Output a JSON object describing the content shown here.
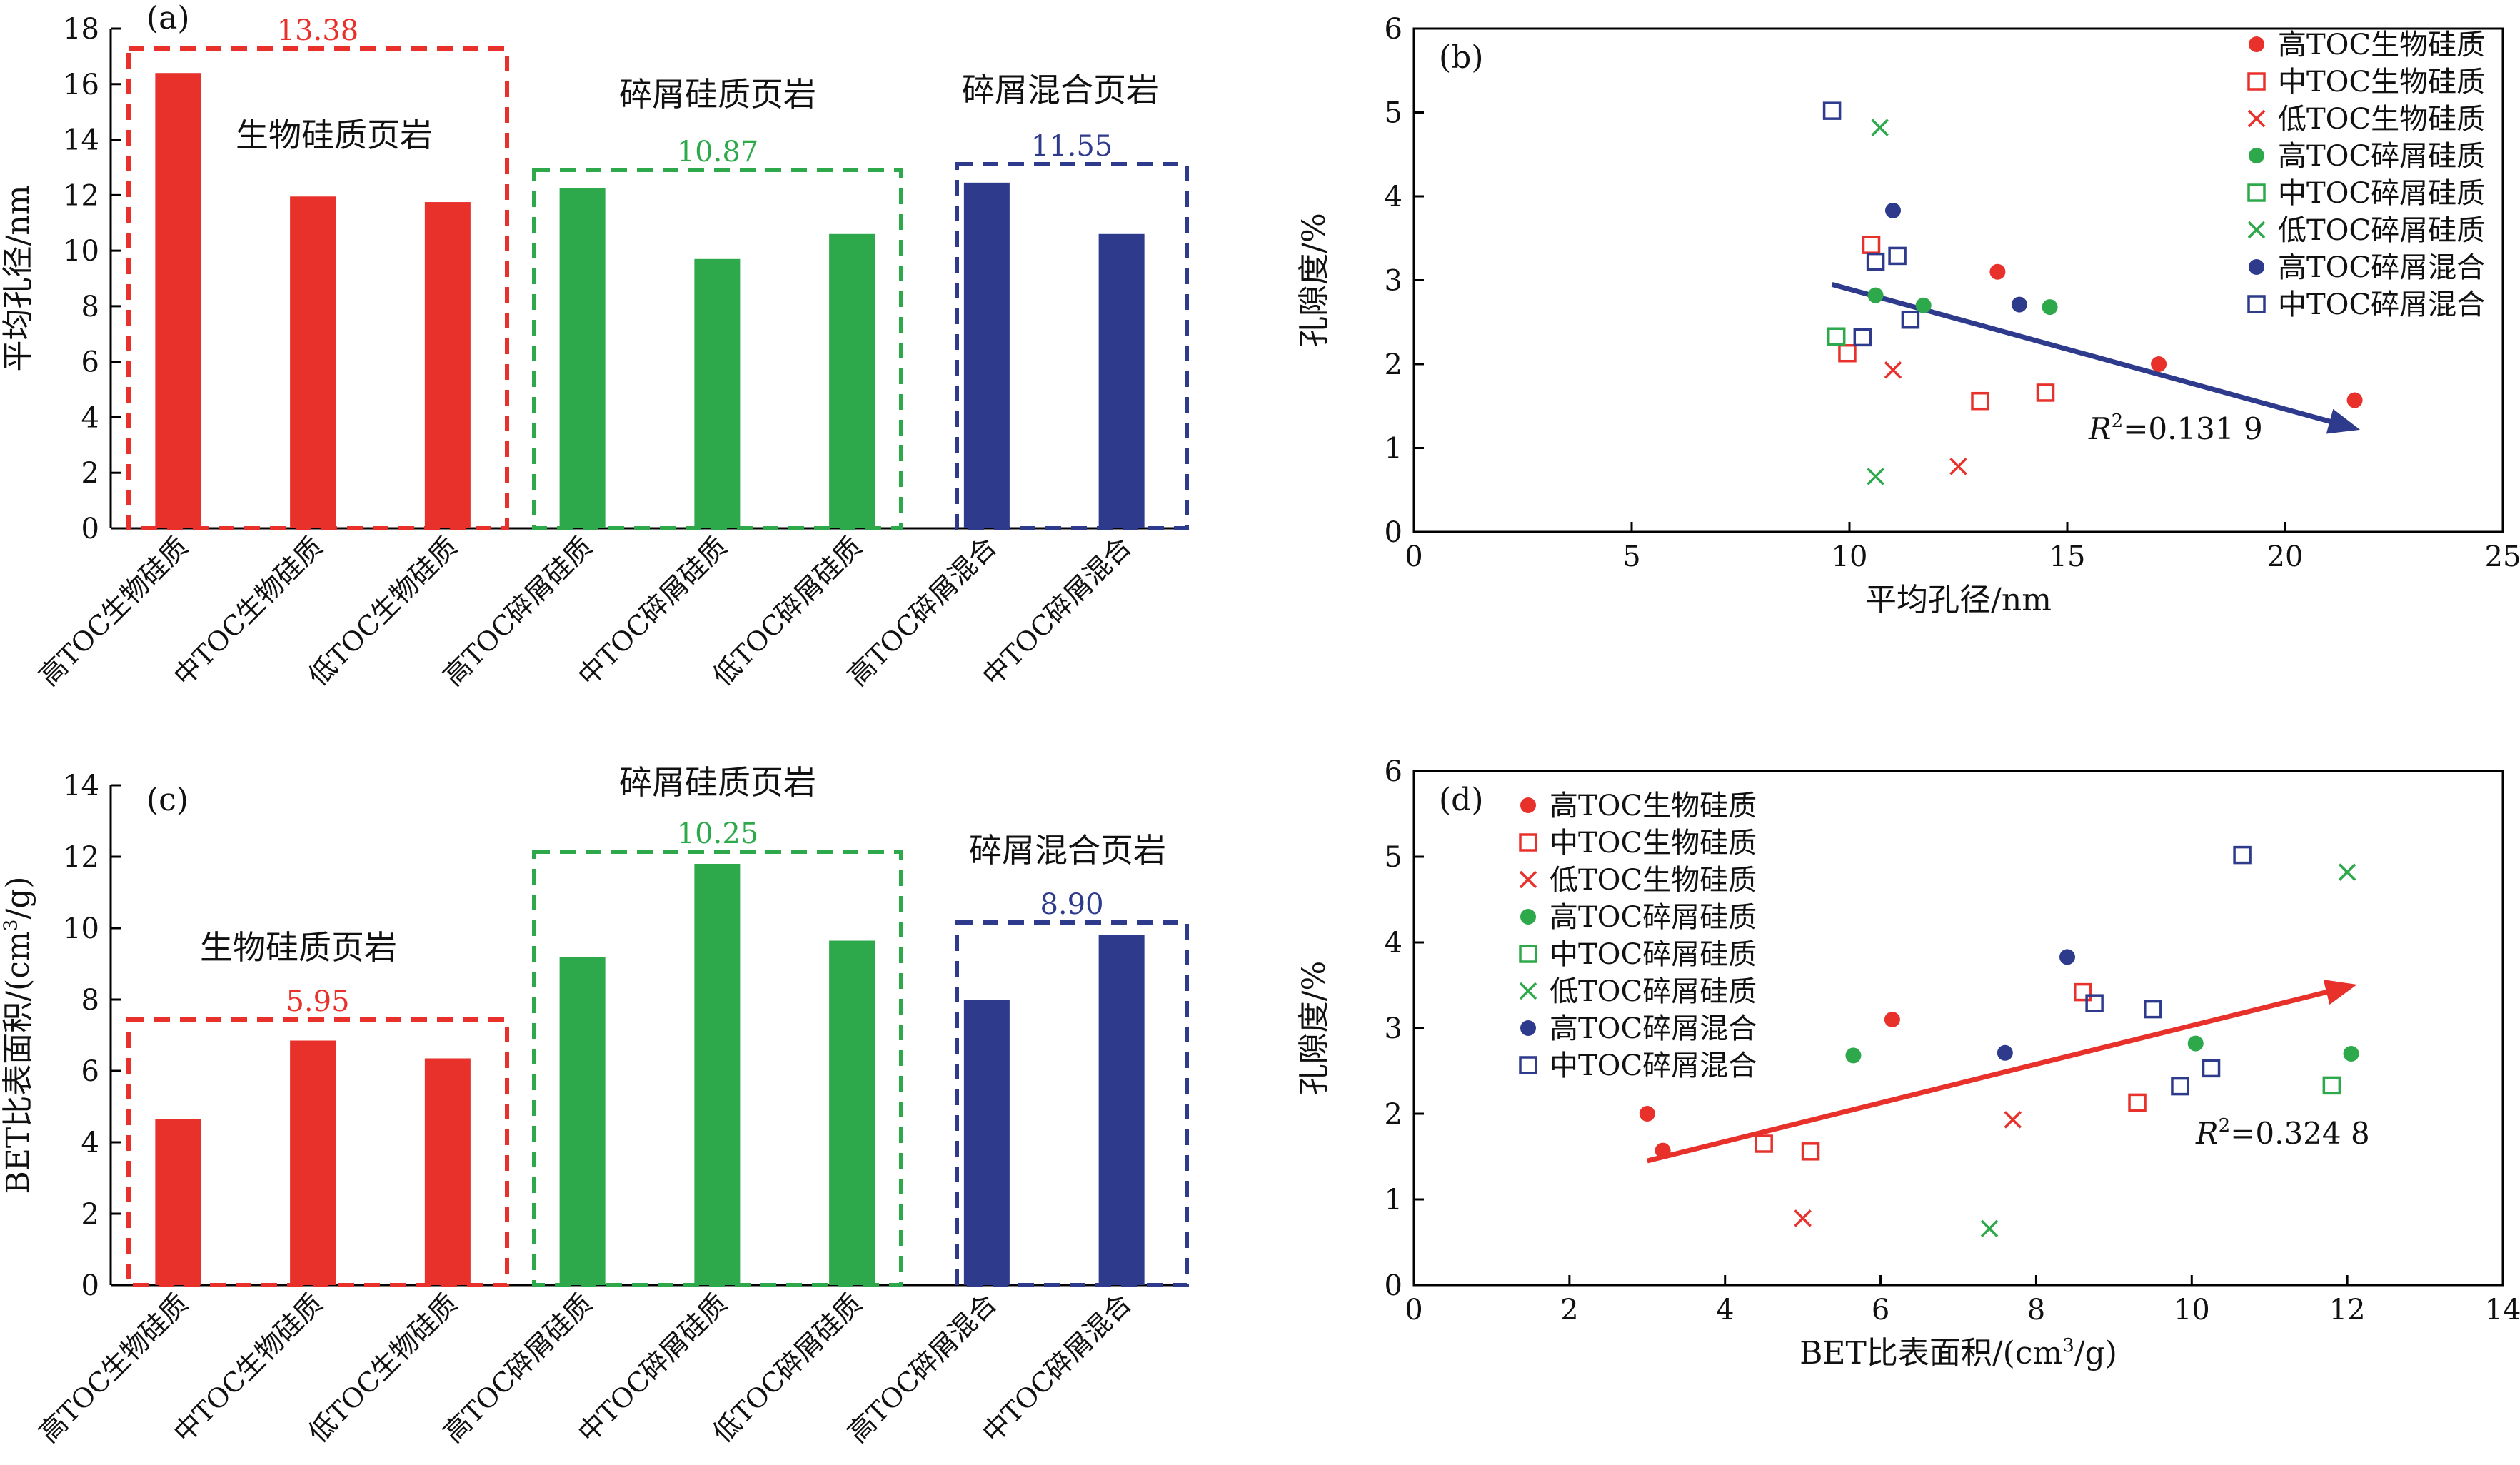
{
  "category_labels": [
    "高TOC生物硅质",
    "中TOC生物硅质",
    "低TOC生物硅质",
    "高TOC碎屑硅质",
    "中TOC碎屑硅质",
    "低TOC碎屑硅质",
    "高TOC碎屑混合",
    "中TOC碎屑混合"
  ],
  "colors": {
    "red": "#e8312b",
    "green": "#2da84a",
    "blue": "#2e3a8c"
  },
  "chart_data": [
    {
      "id": "a",
      "type": "bar",
      "panel_label": "(a)",
      "ylabel": "平均孔径/nm",
      "ylim": [
        0,
        18
      ],
      "yticks": [
        "0",
        "2",
        "4",
        "6",
        "8",
        "10",
        "12",
        "14",
        "16",
        "18"
      ],
      "values": [
        16.4,
        11.95,
        11.75,
        12.25,
        9.7,
        10.6,
        12.45,
        10.6
      ],
      "groups": [
        {
          "name": "生物硅质页岩",
          "avg": "13.38",
          "color": "red"
        },
        {
          "name": "碎屑硅质页岩",
          "avg": "10.87",
          "color": "green"
        },
        {
          "name": "碎屑混合页岩",
          "avg": "11.55",
          "color": "blue"
        }
      ]
    },
    {
      "id": "b",
      "type": "scatter",
      "panel_label": "(b)",
      "xlabel": "平均孔径/nm",
      "ylabel": "孔隙度/%",
      "xlim": [
        0,
        25
      ],
      "ylim": [
        0,
        6
      ],
      "xticks": [
        "0",
        "5",
        "10",
        "15",
        "20",
        "25"
      ],
      "yticks": [
        "0",
        "1",
        "2",
        "3",
        "4",
        "5",
        "6"
      ],
      "annotation": "R²=0.131 9",
      "legend": [
        "高TOC生物硅质",
        "中TOC生物硅质",
        "低TOC生物硅质",
        "高TOC碎屑硅质",
        "中TOC碎屑硅质",
        "低TOC碎屑硅质",
        "高TOC碎屑混合",
        "中TOC碎屑混合"
      ],
      "legend_position": "top-right",
      "trend_line": {
        "x": [
          9.6,
          21.5
        ],
        "y": [
          2.95,
          1.25
        ],
        "color": "blue"
      },
      "series": [
        {
          "name": "高TOC生物硅质",
          "marker": "dot",
          "color": "red",
          "x": [
            13.4,
            17.1,
            21.6
          ],
          "y": [
            3.1,
            2.0,
            1.57
          ]
        },
        {
          "name": "中TOC生物硅质",
          "marker": "square",
          "color": "red",
          "x": [
            10.5,
            9.95,
            13.0,
            14.5
          ],
          "y": [
            3.42,
            2.13,
            1.56,
            1.66
          ]
        },
        {
          "name": "低TOC生物硅质",
          "marker": "x",
          "color": "red",
          "x": [
            11.0,
            12.5
          ],
          "y": [
            1.93,
            0.78
          ]
        },
        {
          "name": "高TOC碎屑硅质",
          "marker": "dot",
          "color": "green",
          "x": [
            10.6,
            11.7,
            14.6
          ],
          "y": [
            2.82,
            2.7,
            2.68
          ]
        },
        {
          "name": "中TOC碎屑硅质",
          "marker": "square",
          "color": "green",
          "x": [
            9.7
          ],
          "y": [
            2.33
          ]
        },
        {
          "name": "低TOC碎屑硅质",
          "marker": "x",
          "color": "green",
          "x": [
            10.7,
            10.6
          ],
          "y": [
            4.82,
            0.66
          ]
        },
        {
          "name": "高TOC碎屑混合",
          "marker": "dot",
          "color": "blue",
          "x": [
            11.0,
            13.9
          ],
          "y": [
            3.83,
            2.71
          ]
        },
        {
          "name": "中TOC碎屑混合",
          "marker": "square",
          "color": "blue",
          "x": [
            9.6,
            10.6,
            11.1,
            10.3,
            11.4
          ],
          "y": [
            5.02,
            3.22,
            3.29,
            2.32,
            2.53
          ]
        }
      ]
    },
    {
      "id": "c",
      "type": "bar",
      "panel_label": "(c)",
      "ylabel": "BET比表面积/(cm³/g)",
      "ylim": [
        0,
        14
      ],
      "yticks": [
        "0",
        "2",
        "4",
        "6",
        "8",
        "10",
        "12",
        "14"
      ],
      "values": [
        4.65,
        6.85,
        6.35,
        9.2,
        11.8,
        9.65,
        8.0,
        9.8
      ],
      "groups": [
        {
          "name": "生物硅质页岩",
          "avg": "5.95",
          "color": "red"
        },
        {
          "name": "碎屑硅质页岩",
          "avg": "10.25",
          "color": "green"
        },
        {
          "name": "碎屑混合页岩",
          "avg": "8.90",
          "color": "blue"
        }
      ]
    },
    {
      "id": "d",
      "type": "scatter",
      "panel_label": "(d)",
      "xlabel": "BET比表面积/(cm³/g)",
      "ylabel": "孔隙度/%",
      "xlim": [
        0,
        14
      ],
      "ylim": [
        0,
        6
      ],
      "xticks": [
        "0",
        "2",
        "4",
        "6",
        "8",
        "10",
        "12",
        "14"
      ],
      "yticks": [
        "0",
        "1",
        "2",
        "3",
        "4",
        "5",
        "6"
      ],
      "annotation": "R²=0.324 8",
      "legend": [
        "高TOC生物硅质",
        "中TOC生物硅质",
        "低TOC生物硅质",
        "高TOC碎屑硅质",
        "中TOC碎屑硅质",
        "低TOC碎屑硅质",
        "高TOC碎屑混合",
        "中TOC碎屑混合"
      ],
      "legend_position": "top-left",
      "trend_line": {
        "x": [
          3.0,
          12.0
        ],
        "y": [
          1.45,
          3.48
        ],
        "color": "red"
      },
      "series": [
        {
          "name": "高TOC生物硅质",
          "marker": "dot",
          "color": "red",
          "x": [
            3.0,
            3.2,
            6.15
          ],
          "y": [
            2.0,
            1.57,
            3.1
          ]
        },
        {
          "name": "中TOC生物硅质",
          "marker": "square",
          "color": "red",
          "x": [
            4.5,
            5.1,
            8.6,
            9.3
          ],
          "y": [
            1.65,
            1.56,
            3.42,
            2.13
          ]
        },
        {
          "name": "低TOC生物硅质",
          "marker": "x",
          "color": "red",
          "x": [
            5.0,
            7.7
          ],
          "y": [
            0.78,
            1.93
          ]
        },
        {
          "name": "高TOC碎屑硅质",
          "marker": "dot",
          "color": "green",
          "x": [
            5.65,
            10.05,
            12.05
          ],
          "y": [
            2.68,
            2.82,
            2.7
          ]
        },
        {
          "name": "中TOC碎屑硅质",
          "marker": "square",
          "color": "green",
          "x": [
            11.8
          ],
          "y": [
            2.33
          ]
        },
        {
          "name": "低TOC碎屑硅质",
          "marker": "x",
          "color": "green",
          "x": [
            7.4,
            12.0
          ],
          "y": [
            0.66,
            4.82
          ]
        },
        {
          "name": "高TOC碎屑混合",
          "marker": "dot",
          "color": "blue",
          "x": [
            7.6,
            8.4
          ],
          "y": [
            2.71,
            3.83
          ]
        },
        {
          "name": "中TOC碎屑混合",
          "marker": "square",
          "color": "blue",
          "x": [
            10.65,
            8.75,
            9.5,
            10.25,
            9.85
          ],
          "y": [
            5.02,
            3.29,
            3.22,
            2.53,
            2.32
          ]
        }
      ]
    }
  ]
}
